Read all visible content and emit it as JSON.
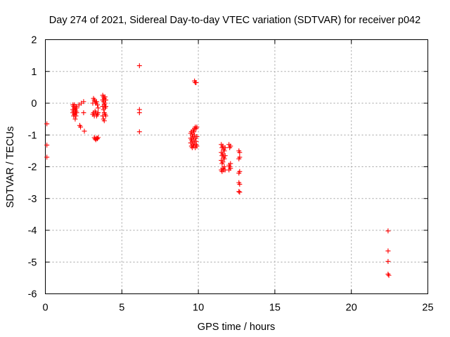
{
  "chart_data": {
    "type": "scatter",
    "title": "Day 274 of 2021, Sidereal Day-to-day VTEC variation (SDTVAR) for receiver p042",
    "xlabel": "GPS time / hours",
    "ylabel": "SDTVAR / TECUs",
    "xlim": [
      0,
      25
    ],
    "ylim": [
      -6,
      2
    ],
    "xticks": [
      0,
      5,
      10,
      15,
      20,
      25
    ],
    "yticks": [
      -6,
      -5,
      -4,
      -3,
      -2,
      -1,
      0,
      1,
      2
    ],
    "grid": true,
    "marker": "plus",
    "color": "#ff0000",
    "series": [
      {
        "name": "SDTVAR",
        "points": [
          [
            0.1,
            -0.65
          ],
          [
            0.1,
            -1.32
          ],
          [
            0.1,
            -1.7
          ],
          [
            1.8,
            -0.05
          ],
          [
            1.8,
            -0.2
          ],
          [
            1.8,
            -0.3
          ],
          [
            1.85,
            -0.1
          ],
          [
            1.85,
            -0.25
          ],
          [
            1.85,
            -0.4
          ],
          [
            1.9,
            -0.05
          ],
          [
            1.9,
            -0.15
          ],
          [
            1.9,
            -0.35
          ],
          [
            1.95,
            -0.2
          ],
          [
            1.95,
            -0.3
          ],
          [
            1.95,
            -0.5
          ],
          [
            2.0,
            -0.1
          ],
          [
            2.0,
            -0.25
          ],
          [
            2.0,
            -0.4
          ],
          [
            2.05,
            -0.15
          ],
          [
            2.05,
            -0.3
          ],
          [
            2.2,
            -0.05
          ],
          [
            2.25,
            -0.7
          ],
          [
            2.3,
            -0.75
          ],
          [
            2.35,
            0.0
          ],
          [
            2.5,
            0.05
          ],
          [
            2.5,
            -0.3
          ],
          [
            2.55,
            -0.88
          ],
          [
            3.1,
            0.0
          ],
          [
            3.1,
            -0.35
          ],
          [
            3.15,
            0.15
          ],
          [
            3.15,
            -0.3
          ],
          [
            3.2,
            0.1
          ],
          [
            3.2,
            -0.4
          ],
          [
            3.2,
            -1.08
          ],
          [
            3.25,
            0.05
          ],
          [
            3.25,
            -0.25
          ],
          [
            3.25,
            -1.12
          ],
          [
            3.3,
            0.0
          ],
          [
            3.3,
            -0.3
          ],
          [
            3.3,
            -1.15
          ],
          [
            3.35,
            0.05
          ],
          [
            3.35,
            -0.4
          ],
          [
            3.35,
            -1.1
          ],
          [
            3.4,
            -0.05
          ],
          [
            3.4,
            -0.35
          ],
          [
            3.4,
            -1.12
          ],
          [
            3.45,
            -0.15
          ],
          [
            3.45,
            -0.3
          ],
          [
            3.45,
            -1.08
          ],
          [
            3.75,
            0.25
          ],
          [
            3.75,
            0.1
          ],
          [
            3.75,
            -0.1
          ],
          [
            3.75,
            -0.4
          ],
          [
            3.8,
            0.2
          ],
          [
            3.8,
            0.05
          ],
          [
            3.8,
            -0.2
          ],
          [
            3.8,
            -0.5
          ],
          [
            3.85,
            0.15
          ],
          [
            3.85,
            -0.05
          ],
          [
            3.85,
            -0.3
          ],
          [
            3.85,
            -0.55
          ],
          [
            3.9,
            0.2
          ],
          [
            3.9,
            0.0
          ],
          [
            3.9,
            -0.15
          ],
          [
            3.9,
            -0.35
          ],
          [
            3.95,
            0.1
          ],
          [
            3.95,
            -0.1
          ],
          [
            3.95,
            -0.4
          ],
          [
            6.15,
            1.18
          ],
          [
            6.15,
            -0.2
          ],
          [
            6.15,
            -0.3
          ],
          [
            6.15,
            -0.9
          ],
          [
            9.5,
            -0.95
          ],
          [
            9.5,
            -1.1
          ],
          [
            9.5,
            -1.25
          ],
          [
            9.55,
            -0.9
          ],
          [
            9.55,
            -1.15
          ],
          [
            9.55,
            -1.35
          ],
          [
            9.6,
            -1.0
          ],
          [
            9.6,
            -1.2
          ],
          [
            9.6,
            -1.4
          ],
          [
            9.65,
            -0.85
          ],
          [
            9.65,
            -1.05
          ],
          [
            9.65,
            -1.3
          ],
          [
            9.7,
            -0.9
          ],
          [
            9.7,
            -1.15
          ],
          [
            9.7,
            -1.35
          ],
          [
            9.75,
            0.7
          ],
          [
            9.75,
            -0.8
          ],
          [
            9.75,
            -1.0
          ],
          [
            9.75,
            -1.25
          ],
          [
            9.8,
            0.65
          ],
          [
            9.8,
            -0.75
          ],
          [
            9.8,
            -1.1
          ],
          [
            9.8,
            -1.4
          ],
          [
            9.85,
            0.65
          ],
          [
            9.85,
            -0.8
          ],
          [
            9.85,
            -1.2
          ],
          [
            9.85,
            -1.3
          ],
          [
            9.9,
            -0.75
          ],
          [
            9.9,
            -1.05
          ],
          [
            9.9,
            -1.35
          ],
          [
            11.5,
            -1.3
          ],
          [
            11.5,
            -1.55
          ],
          [
            11.5,
            -1.8
          ],
          [
            11.5,
            -2.1
          ],
          [
            11.55,
            -1.4
          ],
          [
            11.55,
            -1.65
          ],
          [
            11.55,
            -1.9
          ],
          [
            11.55,
            -2.15
          ],
          [
            11.6,
            -1.35
          ],
          [
            11.6,
            -1.6
          ],
          [
            11.6,
            -1.85
          ],
          [
            11.6,
            -2.05
          ],
          [
            11.65,
            -1.45
          ],
          [
            11.65,
            -1.7
          ],
          [
            11.65,
            -2.1
          ],
          [
            11.7,
            -1.5
          ],
          [
            11.7,
            -1.75
          ],
          [
            11.7,
            -2.0
          ],
          [
            11.75,
            -1.4
          ],
          [
            11.75,
            -1.65
          ],
          [
            11.75,
            -2.1
          ],
          [
            12.0,
            -1.3
          ],
          [
            12.0,
            -1.95
          ],
          [
            12.0,
            -2.1
          ],
          [
            12.05,
            -1.4
          ],
          [
            12.05,
            -2.0
          ],
          [
            12.1,
            -1.35
          ],
          [
            12.1,
            -1.9
          ],
          [
            12.1,
            -2.05
          ],
          [
            12.65,
            -1.5
          ],
          [
            12.65,
            -1.75
          ],
          [
            12.65,
            -2.2
          ],
          [
            12.65,
            -2.5
          ],
          [
            12.65,
            -2.78
          ],
          [
            12.7,
            -1.55
          ],
          [
            12.7,
            -1.7
          ],
          [
            12.7,
            -2.15
          ],
          [
            12.7,
            -2.55
          ],
          [
            12.7,
            -2.8
          ],
          [
            22.4,
            -4.02
          ],
          [
            22.4,
            -4.65
          ],
          [
            22.4,
            -4.98
          ],
          [
            22.4,
            -5.38
          ],
          [
            22.45,
            -5.42
          ]
        ]
      }
    ]
  }
}
